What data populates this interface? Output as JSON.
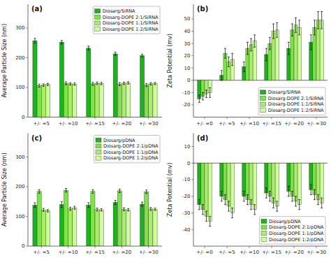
{
  "chart_data": [
    {
      "type": "bar",
      "title": "(a)",
      "ylabel": "Average Particle Size (nm)",
      "categories": [
        "+/- =5",
        "+/- =10",
        "+/- =15",
        "+/- =20",
        "+/- =30"
      ],
      "ylim": [
        0,
        380
      ],
      "yticks": [
        0,
        100,
        200,
        300
      ],
      "grid": false,
      "legend": "upper right",
      "series": [
        {
          "name": "Diosarg/SiRNA",
          "color": "#1cb31c",
          "values": [
            257,
            252,
            232,
            213,
            207
          ],
          "errors": [
            8,
            6,
            7,
            6,
            5
          ]
        },
        {
          "name": "Diosarg-DOPE 2:1/SiRNA",
          "color": "#7de34a",
          "values": [
            106,
            114,
            112,
            111,
            108
          ],
          "errors": [
            5,
            5,
            5,
            5,
            5
          ]
        },
        {
          "name": "Diosarg-DOPE 1:1/SiRNA",
          "color": "#aaee66",
          "values": [
            108,
            112,
            114,
            114,
            112
          ],
          "errors": [
            4,
            4,
            4,
            4,
            4
          ]
        },
        {
          "name": "Diosarg-DOPE 1:2/SiRNA",
          "color": "#ccff99",
          "values": [
            110,
            111,
            113,
            115,
            113
          ],
          "errors": [
            4,
            4,
            4,
            4,
            4
          ]
        }
      ]
    },
    {
      "type": "bar",
      "title": "(b)",
      "ylabel": "Zeta Potential (mv)",
      "categories": [
        "+/- =0",
        "+/- =5",
        "+/- =10",
        "+/- =15",
        "+/- =20",
        "+/- =30"
      ],
      "ylim": [
        -30,
        62
      ],
      "yticks": [
        -20,
        -10,
        0,
        10,
        20,
        30,
        40,
        50
      ],
      "grid": false,
      "legend": "lower right",
      "series": [
        {
          "name": "Diosarg/SiRNA",
          "color": "#1cb31c",
          "values": [
            -15,
            4,
            11,
            21,
            26,
            31
          ],
          "errors": [
            3,
            4,
            4,
            5,
            5,
            6
          ]
        },
        {
          "name": "Diosarg-DOPE 2:1/SiRNA",
          "color": "#7de34a",
          "values": [
            -13,
            22,
            26,
            30,
            41,
            43
          ],
          "errors": [
            3,
            4,
            5,
            5,
            5,
            6
          ]
        },
        {
          "name": "Diosarg-DOPE 1:1/SiRNA",
          "color": "#aaee66",
          "values": [
            -11,
            15,
            29,
            40,
            45,
            49
          ],
          "errors": [
            3,
            4,
            5,
            6,
            6,
            7
          ]
        },
        {
          "name": "Diosarg-DOPE 1:2/SiRNA",
          "color": "#ccff99",
          "values": [
            -10,
            17,
            32,
            41,
            43,
            49
          ],
          "errors": [
            4,
            5,
            5,
            6,
            6,
            7
          ]
        }
      ]
    },
    {
      "type": "bar",
      "title": "(c)",
      "ylabel": "Average Particle Size (nm)",
      "categories": [
        "+/- =5",
        "+/- =10",
        "+/- =15",
        "+/- =20",
        "+/- =30"
      ],
      "ylim": [
        0,
        380
      ],
      "yticks": [
        0,
        100,
        200,
        300
      ],
      "grid": false,
      "legend": "upper right",
      "series": [
        {
          "name": "Diosarg/pDNA",
          "color": "#1cb31c",
          "values": [
            138,
            140,
            138,
            147,
            141
          ],
          "errors": [
            8,
            10,
            8,
            7,
            7
          ]
        },
        {
          "name": "Diosarg-DOPE 2:1/pDNA",
          "color": "#7de34a",
          "values": [
            184,
            188,
            184,
            186,
            183
          ],
          "errors": [
            6,
            6,
            6,
            6,
            6
          ]
        },
        {
          "name": "Diosarg-DOPE 1:1/pDNA",
          "color": "#aaee66",
          "values": [
            122,
            126,
            123,
            124,
            125
          ],
          "errors": [
            5,
            5,
            5,
            5,
            5
          ]
        },
        {
          "name": "Diosarg-DOPE 1:2/pDNA",
          "color": "#ccff99",
          "values": [
            119,
            129,
            122,
            122,
            124
          ],
          "errors": [
            4,
            5,
            4,
            4,
            4
          ]
        }
      ]
    },
    {
      "type": "bar",
      "title": "(d)",
      "ylabel": "Zeta Potential (mv)",
      "categories": [
        "+/- =0",
        "+/- =5",
        "+/- =10",
        "+/- =15",
        "+/- =20",
        "+/- =30"
      ],
      "ylim": [
        -50,
        18
      ],
      "yticks": [
        -40,
        -30,
        -20,
        -10,
        0,
        10
      ],
      "grid": false,
      "legend": "lower right",
      "series": [
        {
          "name": "Diosarg/pDNA",
          "color": "#1cb31c",
          "values": [
            -25,
            -20,
            -20,
            -18,
            -17,
            -16
          ],
          "errors": [
            3,
            3,
            3,
            3,
            3,
            3
          ]
        },
        {
          "name": "Diosarg-DOPE 2:1/pDNA",
          "color": "#7de34a",
          "values": [
            -28,
            -22,
            -22,
            -20,
            -20,
            -19
          ],
          "errors": [
            3,
            3,
            3,
            3,
            3,
            3
          ]
        },
        {
          "name": "Diosarg-DOPE 1:1/pDNA",
          "color": "#aaee66",
          "values": [
            -32,
            -26,
            -25,
            -24,
            -23,
            -22
          ],
          "errors": [
            3,
            3,
            3,
            3,
            3,
            3
          ]
        },
        {
          "name": "Diosarg-DOPE 1:2/pDNA",
          "color": "#ccff99",
          "values": [
            -35,
            -30,
            -28,
            -26,
            -25,
            -24
          ],
          "errors": [
            3,
            3,
            3,
            3,
            3,
            3
          ]
        }
      ]
    }
  ]
}
